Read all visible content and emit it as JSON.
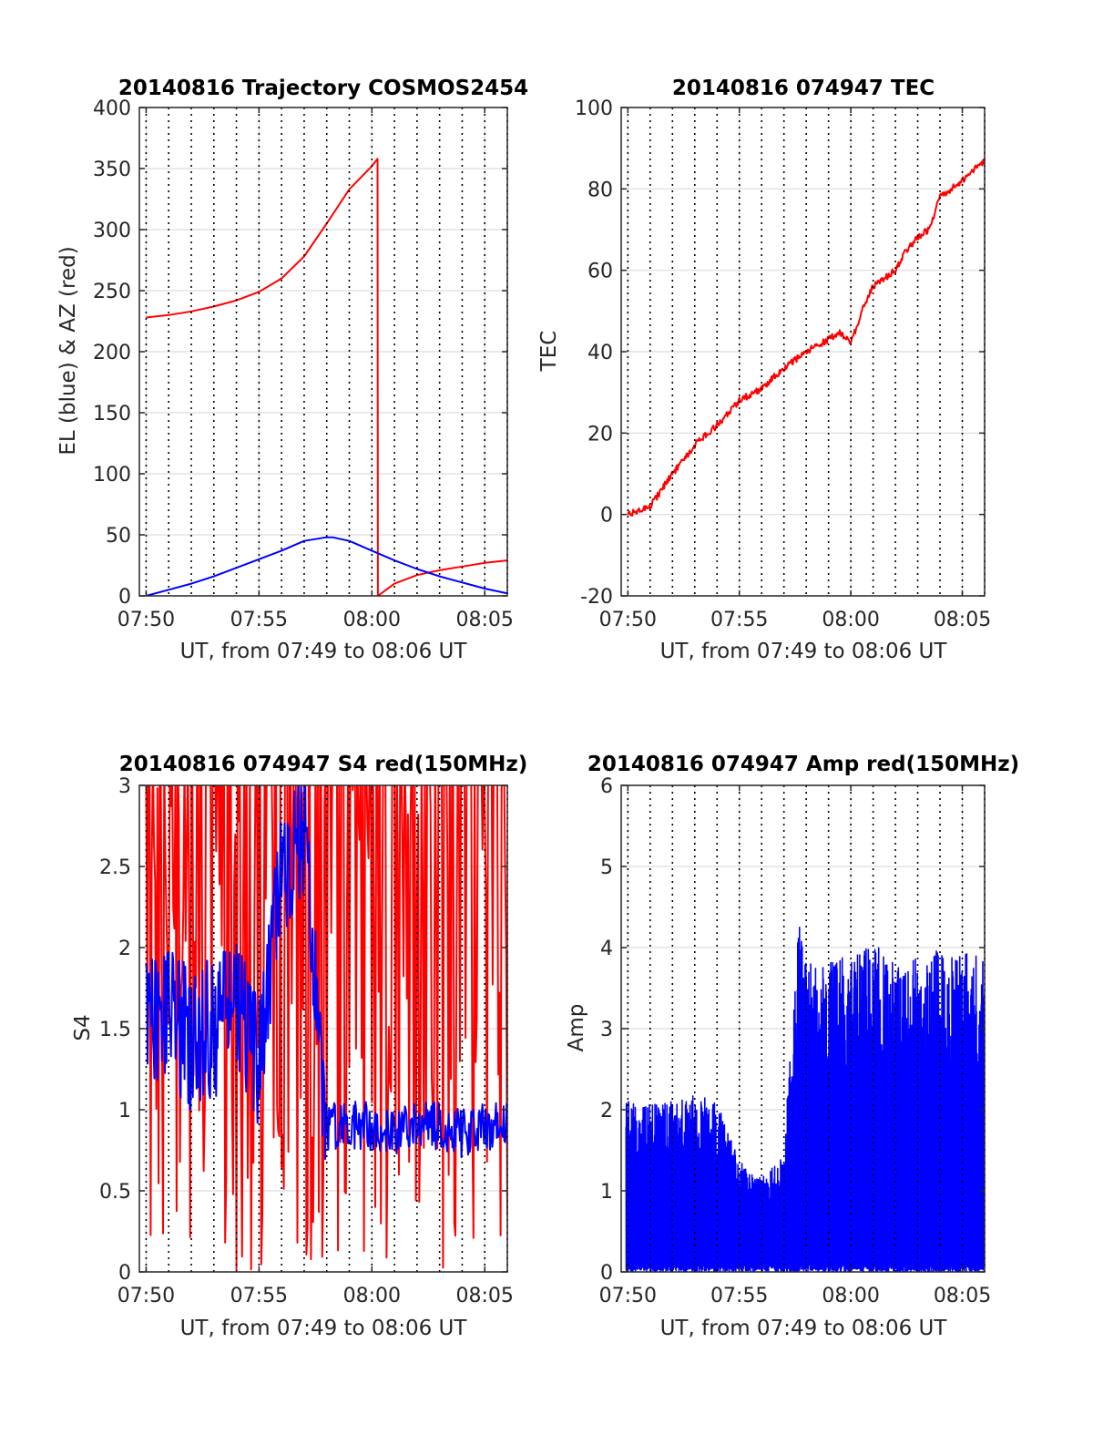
{
  "chart_data": [
    {
      "type": "line",
      "title": "20140816 Trajectory COSMOS2454",
      "xlabel": "UT, from 07:49 to 08:06 UT",
      "ylabel": "EL (blue) & AZ (red)",
      "xlim": [
        "07:49:42",
        "08:06:00"
      ],
      "ylim": [
        0,
        400
      ],
      "x_ticks": [
        "07:50",
        "07:55",
        "08:00",
        "08:05"
      ],
      "y_ticks": [
        0,
        50,
        100,
        150,
        200,
        250,
        300,
        350,
        400
      ],
      "grid": true,
      "colors": {
        "EL": "#0000ff",
        "AZ": "#ff0000"
      },
      "series": [
        {
          "color": "#ff0000",
          "x": [
            "07:50",
            "07:51",
            "07:52",
            "07:53",
            "07:54",
            "07:55",
            "07:56",
            "07:57",
            "07:58",
            "07:59",
            "08:00",
            "08:00:15",
            "08:00:16",
            "08:01",
            "08:02",
            "08:03",
            "08:04",
            "08:05",
            "08:06"
          ],
          "values": [
            228,
            230,
            233,
            237,
            242,
            249,
            260,
            278,
            305,
            333,
            352,
            358,
            0,
            10,
            17,
            21,
            24,
            27,
            29
          ]
        },
        {
          "color": "#0000ff",
          "x": [
            "07:50",
            "07:51",
            "07:52",
            "07:53",
            "07:54",
            "07:55",
            "07:56",
            "07:57",
            "07:58",
            "07:58:15",
            "07:59",
            "08:00",
            "08:01",
            "08:02",
            "08:03",
            "08:04",
            "08:05",
            "08:06"
          ],
          "values": [
            0,
            5,
            10,
            16,
            23,
            30,
            37,
            45,
            48,
            48,
            45,
            37,
            29,
            22,
            16,
            11,
            6,
            2
          ]
        }
      ]
    },
    {
      "type": "line",
      "title": "20140816 074947 TEC",
      "xlabel": "UT, from 07:49 to 08:06 UT",
      "ylabel": "TEC",
      "xlim": [
        "07:49:42",
        "08:06:00"
      ],
      "ylim": [
        -20,
        100
      ],
      "x_ticks": [
        "07:50",
        "07:55",
        "08:00",
        "08:05"
      ],
      "y_ticks": [
        -20,
        0,
        20,
        40,
        60,
        80,
        100
      ],
      "grid": true,
      "series": [
        {
          "color": "#ff0000",
          "x": [
            "07:50",
            "07:51",
            "07:52",
            "07:53",
            "07:54",
            "07:55",
            "07:56",
            "07:57",
            "07:58",
            "07:59",
            "07:59:30",
            "08:00",
            "08:00:30",
            "08:01",
            "08:02",
            "08:02:30",
            "08:03",
            "08:03:30",
            "08:04",
            "08:05",
            "08:06"
          ],
          "values": [
            0,
            2,
            10,
            17,
            22,
            28,
            31,
            36,
            40,
            43,
            45,
            42,
            50,
            56,
            60,
            65,
            68,
            70,
            78,
            82,
            87
          ]
        }
      ]
    },
    {
      "type": "line",
      "title": "20140816 074947 S4 red(150MHz)",
      "xlabel": "UT, from 07:49 to 08:06 UT",
      "ylabel": "S4",
      "xlim": [
        "07:49:42",
        "08:06:00"
      ],
      "ylim": [
        0,
        3
      ],
      "x_ticks": [
        "07:50",
        "07:55",
        "08:00",
        "08:05"
      ],
      "y_ticks": [
        0,
        0.5,
        1,
        1.5,
        2,
        2.5,
        3
      ],
      "grid": true,
      "series": [
        {
          "color": "#ff0000",
          "x": [
            "07:50",
            "07:52",
            "07:54",
            "07:56",
            "07:58",
            "08:00",
            "08:02",
            "08:04",
            "08:06"
          ],
          "values": [
            3,
            0,
            3,
            0,
            3,
            0,
            3,
            0,
            3
          ]
        },
        {
          "color": "#0000ff",
          "x": [
            "07:50",
            "07:51",
            "07:52",
            "07:53",
            "07:54",
            "07:55",
            "07:56",
            "07:57",
            "07:58",
            "07:59",
            "08:00",
            "08:01",
            "08:02",
            "08:03",
            "08:04",
            "08:05",
            "08:06"
          ],
          "values": [
            1.5,
            1.6,
            1.4,
            1.5,
            1.6,
            1.3,
            2.4,
            2.8,
            0.9,
            0.9,
            0.9,
            0.85,
            0.9,
            0.9,
            0.85,
            0.9,
            0.9
          ]
        }
      ]
    },
    {
      "type": "line",
      "title": "20140816 074947 Amp red(150MHz)",
      "xlabel": "UT, from 07:49 to 08:06 UT",
      "ylabel": "Amp",
      "xlim": [
        "07:49:42",
        "08:06:00"
      ],
      "ylim": [
        0,
        6
      ],
      "x_ticks": [
        "07:50",
        "07:55",
        "08:00",
        "08:05"
      ],
      "y_ticks": [
        0,
        1,
        2,
        3,
        4,
        5,
        6
      ],
      "grid": true,
      "series": [
        {
          "color": "#0000ff",
          "x": [
            "07:50",
            "07:51",
            "07:52",
            "07:53",
            "07:54",
            "07:55",
            "07:56",
            "07:57",
            "07:57:40",
            "07:58",
            "07:59",
            "08:00",
            "08:01",
            "08:02",
            "08:03",
            "08:04",
            "08:05",
            "08:06"
          ],
          "values": [
            2.0,
            2.0,
            2.0,
            2.1,
            2.0,
            1.3,
            1.1,
            1.4,
            4.3,
            3.6,
            3.7,
            3.7,
            3.9,
            3.6,
            3.7,
            3.8,
            3.8,
            3.7
          ]
        }
      ]
    }
  ]
}
